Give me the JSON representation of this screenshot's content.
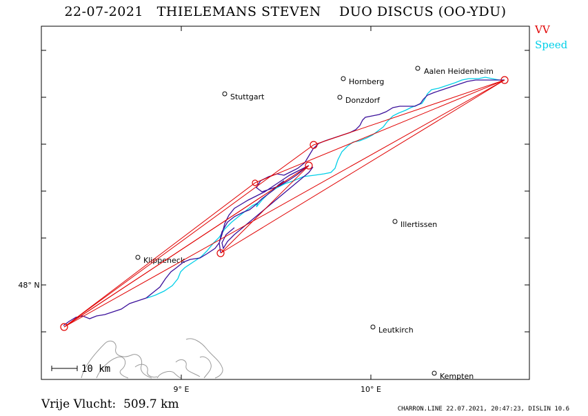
{
  "header": {
    "title": "22-07-2021   THIELEMANS STEVEN    DUO DISCUS (OO-YDU)"
  },
  "legend": {
    "vv_label": "VV",
    "speed_label": "Speed",
    "vv_color": "#e00000",
    "speed_color": "#00cfe8",
    "track_color": "#3a0f9a"
  },
  "axes": {
    "lon_labels": [
      "9° E",
      "10° E"
    ],
    "lat_labels": [
      "48° N"
    ]
  },
  "scale_bar": {
    "label": "10 km"
  },
  "towns": [
    {
      "name": "Stuttgart"
    },
    {
      "name": "Hornberg"
    },
    {
      "name": "Aalen Heidenheim"
    },
    {
      "name": "Donzdorf"
    },
    {
      "name": "Illertissen"
    },
    {
      "name": "Klippeneck"
    },
    {
      "name": "Leutkirch"
    },
    {
      "name": "Kempten"
    }
  ],
  "footer": {
    "distance": "Vrije Vlucht:  509.7 km",
    "credits": "CHARRON.LINE 22.07.2021, 20:47:23, DISLIN 10.6"
  }
}
